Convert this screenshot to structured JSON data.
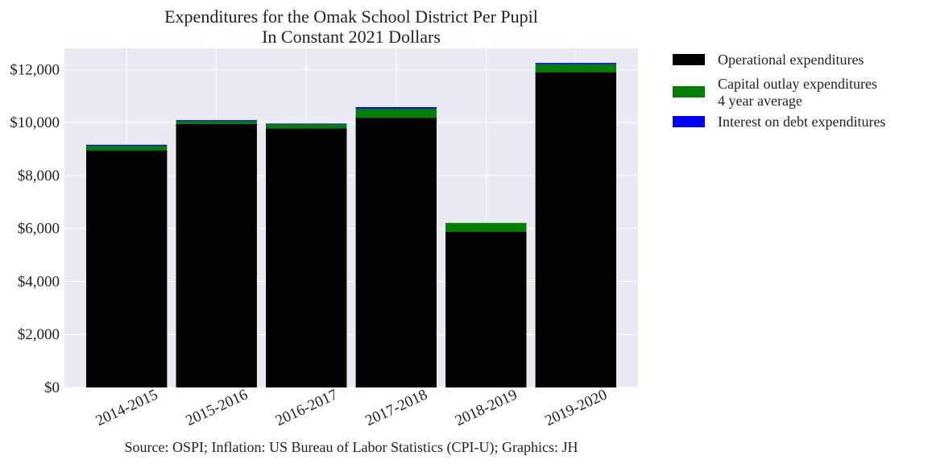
{
  "chart_data": {
    "type": "bar",
    "stacked": true,
    "title": "Expenditures for the Omak School District Per Pupil",
    "subtitle": "In Constant 2021 Dollars",
    "xlabel": "",
    "ylabel": "",
    "categories": [
      "2014-2015",
      "2015-2016",
      "2016-2017",
      "2017-2018",
      "2018-2019",
      "2019-2020"
    ],
    "series": [
      {
        "name": "Operational expenditures",
        "color": "#000000",
        "values": [
          8950,
          9950,
          9780,
          10180,
          5880,
          11900
        ]
      },
      {
        "name": "Capital outlay expenditures\n4 year average",
        "color": "#008000",
        "values": [
          170,
          100,
          150,
          340,
          330,
          300
        ]
      },
      {
        "name": "Interest on debt expenditures",
        "color": "#0000ff",
        "values": [
          40,
          40,
          30,
          60,
          0,
          50
        ]
      }
    ],
    "ylim": [
      0,
      12800
    ],
    "yticks": [
      0,
      2000,
      4000,
      6000,
      8000,
      10000,
      12000
    ],
    "ytick_labels": [
      "$0",
      "$2,000",
      "$4,000",
      "$6,000",
      "$8,000",
      "$10,000",
      "$12,000"
    ],
    "grid": true,
    "legend_position": "outside-right",
    "source_note": "Source: OSPI; Inflation: US Bureau of Labor Statistics (CPI-U); Graphics: JH"
  }
}
